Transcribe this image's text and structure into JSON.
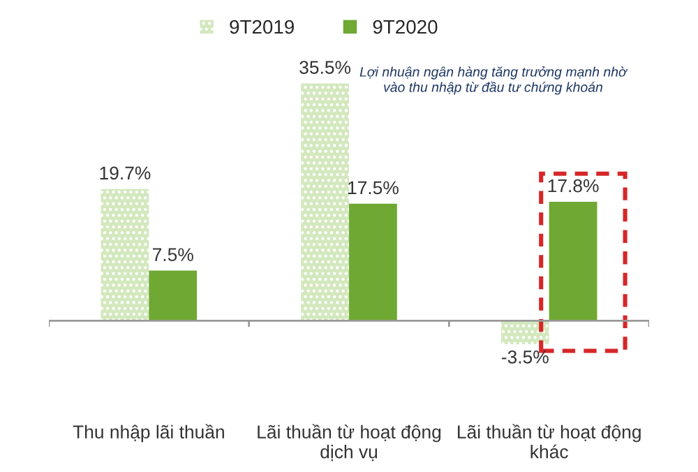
{
  "chart_data": {
    "type": "bar",
    "categories": [
      "Thu nhập lãi thuần",
      "Lãi thuần từ hoạt động dịch vụ",
      "Lãi thuần từ hoạt động khác"
    ],
    "series": [
      {
        "name": "9T2019",
        "color": "#d3e8bd",
        "values": [
          19.7,
          35.5,
          -3.5
        ],
        "value_labels": [
          "19.7%",
          "35.5%",
          "-3.5%"
        ]
      },
      {
        "name": "9T2020",
        "color": "#6fa832",
        "values": [
          7.5,
          17.5,
          17.8
        ],
        "value_labels": [
          "7.5%",
          "17.5%",
          "17.8%"
        ]
      }
    ],
    "tick_labels": "x",
    "legend": "top",
    "annotations": [
      "Lợi nhuận ngân hàng tăng trưởng mạnh nhờ\nvào thu nhập từ đầu tư chứng khoán"
    ]
  }
}
